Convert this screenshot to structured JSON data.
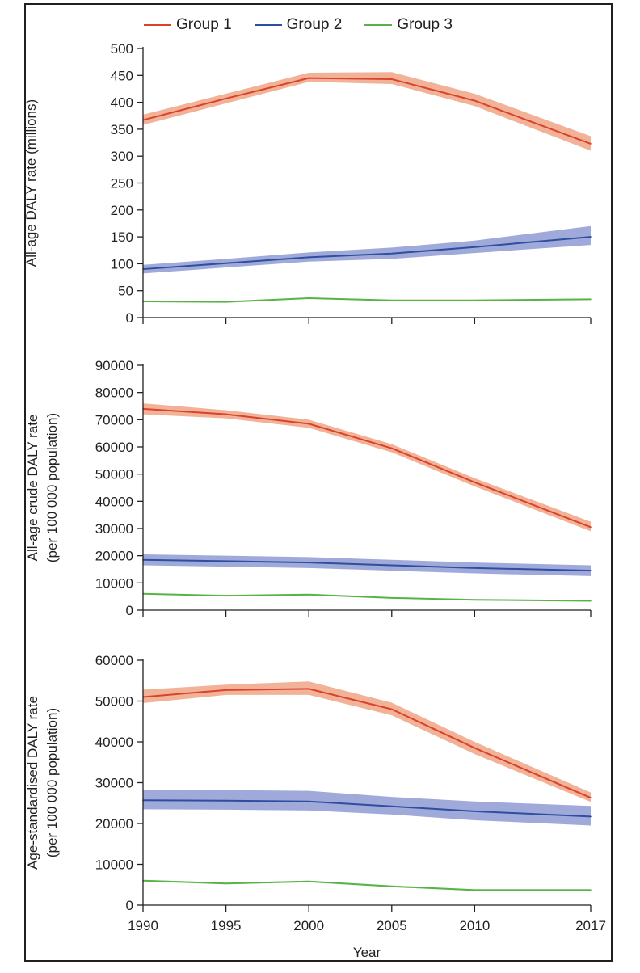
{
  "legend": [
    {
      "name": "Group 1",
      "color": "#d9432b"
    },
    {
      "name": "Group 2",
      "color": "#2e4f9e"
    },
    {
      "name": "Group 3",
      "color": "#58b347"
    }
  ],
  "chart_data": [
    {
      "type": "line",
      "ylabel": [
        "All-age DALY rate (millions)"
      ],
      "xlabel": "",
      "ylim": [
        0,
        500
      ],
      "yticks": [
        0,
        50,
        100,
        150,
        200,
        250,
        300,
        350,
        400,
        450,
        500
      ],
      "ytick_labels": [
        "0",
        "50",
        "100",
        "150",
        "200",
        "250",
        "300",
        "350",
        "400",
        "450",
        "500"
      ],
      "x": [
        1990,
        1995,
        2000,
        2005,
        2010,
        2017
      ],
      "series": [
        {
          "name": "Group 1",
          "color": "#d9432b",
          "band_color": "#f0a585",
          "values": [
            367,
            407,
            445,
            443,
            403,
            323
          ],
          "lower": [
            358,
            398,
            438,
            434,
            393,
            310
          ],
          "upper": [
            377,
            416,
            455,
            456,
            416,
            337
          ]
        },
        {
          "name": "Group 2",
          "color": "#2e4f9e",
          "band_color": "#8e9bd3",
          "values": [
            90,
            101,
            112,
            119,
            131,
            150
          ],
          "lower": [
            82,
            93,
            104,
            109,
            120,
            135
          ],
          "upper": [
            98,
            109,
            121,
            130,
            143,
            170
          ]
        },
        {
          "name": "Group 3",
          "color": "#58b347",
          "band_color": "#b8dfae",
          "values": [
            30,
            29,
            36,
            32,
            32,
            34
          ],
          "lower": [
            29,
            28,
            35,
            31,
            31,
            33
          ],
          "upper": [
            31,
            30,
            37,
            33,
            33,
            35
          ]
        }
      ]
    },
    {
      "type": "line",
      "ylabel": [
        "All-age crude DALY rate",
        "(per 100 000 population)"
      ],
      "xlabel": "",
      "ylim": [
        0,
        90000
      ],
      "yticks": [
        0,
        10000,
        20000,
        30000,
        40000,
        50000,
        60000,
        70000,
        80000,
        90000
      ],
      "ytick_labels": [
        "0",
        "10000",
        "20000",
        "30000",
        "40000",
        "50000",
        "60000",
        "70000",
        "80000",
        "90000"
      ],
      "x": [
        1990,
        1995,
        2000,
        2005,
        2010,
        2017
      ],
      "series": [
        {
          "name": "Group 1",
          "color": "#d9432b",
          "band_color": "#f0a585",
          "values": [
            74000,
            72000,
            68500,
            59500,
            47000,
            30500
          ],
          "lower": [
            72000,
            70500,
            67000,
            58000,
            45500,
            29000
          ],
          "upper": [
            76000,
            73500,
            70000,
            61000,
            48500,
            32500
          ]
        },
        {
          "name": "Group 2",
          "color": "#2e4f9e",
          "band_color": "#8e9bd3",
          "values": [
            18500,
            18000,
            17500,
            16500,
            15500,
            14500
          ],
          "lower": [
            16500,
            16000,
            15500,
            14500,
            13500,
            12500
          ],
          "upper": [
            20500,
            20000,
            19500,
            18500,
            17500,
            16500
          ]
        },
        {
          "name": "Group 3",
          "color": "#58b347",
          "band_color": "#b8dfae",
          "values": [
            6000,
            5300,
            5700,
            4500,
            3800,
            3400
          ],
          "lower": [
            5800,
            5100,
            5500,
            4300,
            3600,
            3200
          ],
          "upper": [
            6200,
            5500,
            5900,
            4700,
            4000,
            3600
          ]
        }
      ]
    },
    {
      "type": "line",
      "ylabel": [
        "Age-standardised DALY rate",
        "(per 100 000 population)"
      ],
      "xlabel": "Year",
      "ylim": [
        0,
        60000
      ],
      "yticks": [
        0,
        10000,
        20000,
        30000,
        40000,
        50000,
        60000
      ],
      "ytick_labels": [
        "0",
        "10000",
        "20000",
        "30000",
        "40000",
        "50000",
        "60000"
      ],
      "x": [
        1990,
        1995,
        2000,
        2005,
        2010,
        2017
      ],
      "xticks": [
        1990,
        1995,
        2000,
        2005,
        2010,
        2017
      ],
      "xtick_labels": [
        "1990",
        "1995",
        "2000",
        "2005",
        "2010",
        "2017"
      ],
      "series": [
        {
          "name": "Group 1",
          "color": "#d9432b",
          "band_color": "#f0a585",
          "values": [
            51000,
            52700,
            53000,
            48000,
            38500,
            26300
          ],
          "lower": [
            49500,
            51500,
            51500,
            46500,
            37000,
            25300
          ],
          "upper": [
            52800,
            54000,
            54800,
            49600,
            40000,
            27600
          ]
        },
        {
          "name": "Group 2",
          "color": "#2e4f9e",
          "band_color": "#8e9bd3",
          "values": [
            25700,
            25600,
            25400,
            24200,
            23000,
            21700
          ],
          "lower": [
            23500,
            23400,
            23200,
            22200,
            20800,
            19500
          ],
          "upper": [
            28300,
            28200,
            28000,
            26500,
            25400,
            24300
          ]
        },
        {
          "name": "Group 3",
          "color": "#58b347",
          "band_color": "#b8dfae",
          "values": [
            6000,
            5300,
            5800,
            4600,
            3700,
            3700
          ],
          "lower": [
            5800,
            5100,
            5600,
            4400,
            3500,
            3500
          ],
          "upper": [
            6200,
            5500,
            6000,
            4800,
            3900,
            3900
          ]
        }
      ]
    }
  ]
}
